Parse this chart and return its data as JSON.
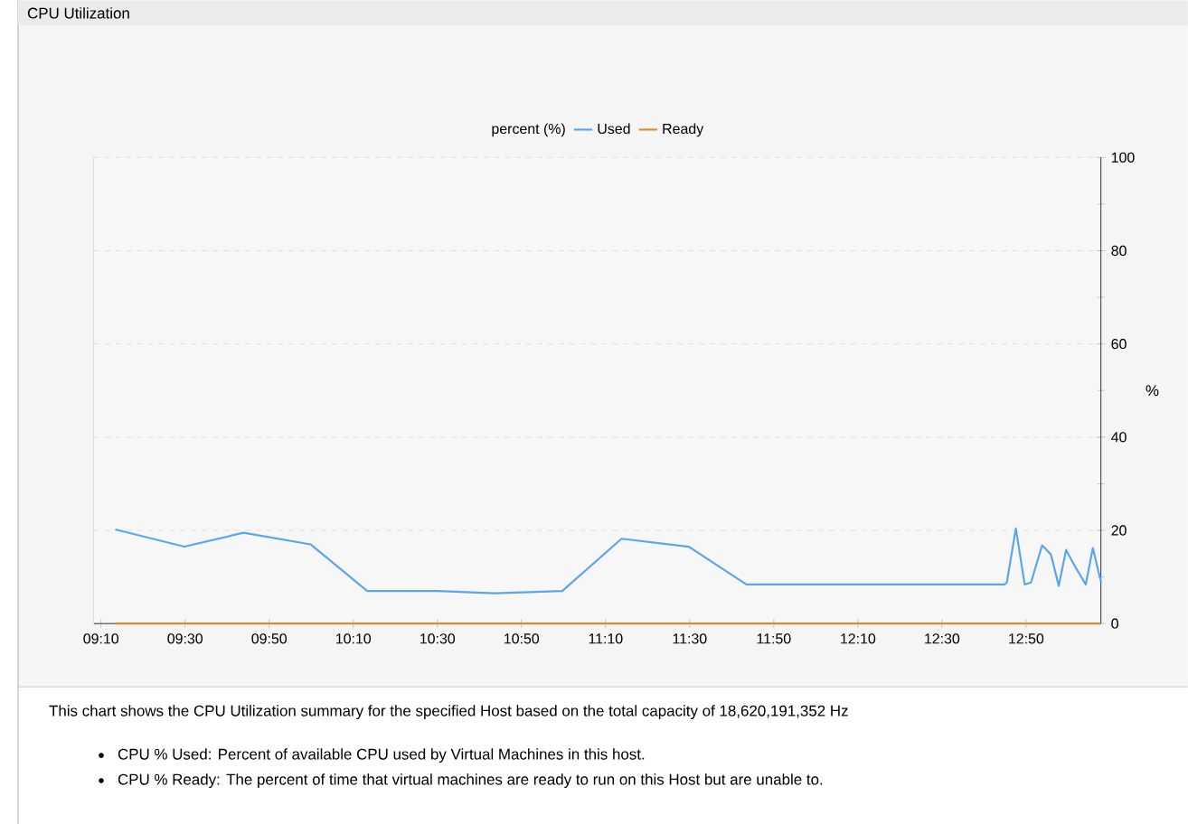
{
  "chart_data": {
    "type": "line",
    "title": "CPU Utilization",
    "legend_title": "percent (%)",
    "ylabel": "%",
    "x": [
      9.223,
      9.497,
      9.732,
      9.997,
      10.222,
      10.5,
      10.728,
      10.995,
      11.23,
      11.497,
      11.725,
      12.748,
      12.757,
      12.793,
      12.828,
      12.853,
      12.897,
      12.932,
      12.963,
      12.992,
      13.027,
      13.07,
      13.098,
      13.13
    ],
    "series": [
      {
        "name": "Used",
        "color": "#5aa5f0",
        "values": [
          20.2,
          16.5,
          19.5,
          17,
          7,
          7,
          6.5,
          7,
          18.2,
          16.5,
          8.4,
          8.4,
          8.8,
          20.4,
          8.4,
          8.8,
          16.8,
          14.8,
          8.1,
          15.8,
          12.3,
          8.4,
          16.2,
          9.0
        ]
      },
      {
        "name": "Ready",
        "color": "#e08a30",
        "values": [
          0,
          0,
          0,
          0,
          0,
          0,
          0,
          0,
          0,
          0,
          0,
          0,
          0,
          0,
          0,
          0,
          0,
          0,
          0,
          0,
          0,
          0,
          0,
          0
        ]
      }
    ],
    "xlim": [
      9.139,
      13.13
    ],
    "ylim": [
      0,
      100
    ],
    "xticks": [
      {
        "value": 9.1667,
        "label": "09:10"
      },
      {
        "value": 9.5,
        "label": "09:30"
      },
      {
        "value": 9.8333,
        "label": "09:50"
      },
      {
        "value": 10.1667,
        "label": "10:10"
      },
      {
        "value": 10.5,
        "label": "10:30"
      },
      {
        "value": 10.8333,
        "label": "10:50"
      },
      {
        "value": 11.1667,
        "label": "11:10"
      },
      {
        "value": 11.5,
        "label": "11:30"
      },
      {
        "value": 11.8333,
        "label": "11:50"
      },
      {
        "value": 12.1667,
        "label": "12:10"
      },
      {
        "value": 12.5,
        "label": "12:30"
      },
      {
        "value": 12.8333,
        "label": "12:50"
      }
    ],
    "yticks": [
      0,
      20,
      40,
      60,
      80,
      100
    ],
    "grid": "y",
    "legend": "top",
    "marker": "none",
    "line_style": "solid",
    "annotations": [
      "This chart shows the CPU Utilization summary for the specified Host based on the total capacity of 18,620,191,352 Hz",
      "CPU % Used: Percent of available CPU used by Virtual Machines in this host.",
      "CPU % Ready: The percent of time that virtual machines are ready to run on this Host but are unable to."
    ]
  }
}
